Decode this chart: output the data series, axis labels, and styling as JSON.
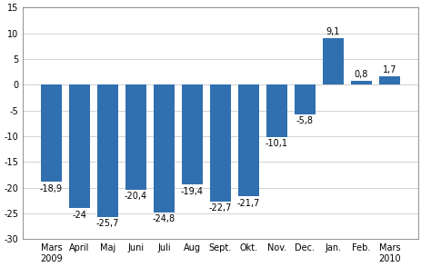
{
  "categories": [
    "Mars\n2009",
    "April",
    "Maj",
    "Juni",
    "Juli",
    "Aug",
    "Sept.",
    "Okt.",
    "Nov.",
    "Dec.",
    "Jan.",
    "Feb.",
    "Mars\n2010"
  ],
  "values": [
    -18.9,
    -24.0,
    -25.7,
    -20.4,
    -24.8,
    -19.4,
    -22.7,
    -21.7,
    -10.1,
    -5.8,
    9.1,
    0.8,
    1.7
  ],
  "bar_color": "#3070B0",
  "ylim": [
    -30,
    15
  ],
  "yticks": [
    -30,
    -25,
    -20,
    -15,
    -10,
    -5,
    0,
    5,
    10,
    15
  ],
  "label_fontsize": 7.0,
  "tick_fontsize": 7.0,
  "background_color": "#ffffff",
  "grid_color": "#c0c0c0",
  "spine_color": "#808080"
}
